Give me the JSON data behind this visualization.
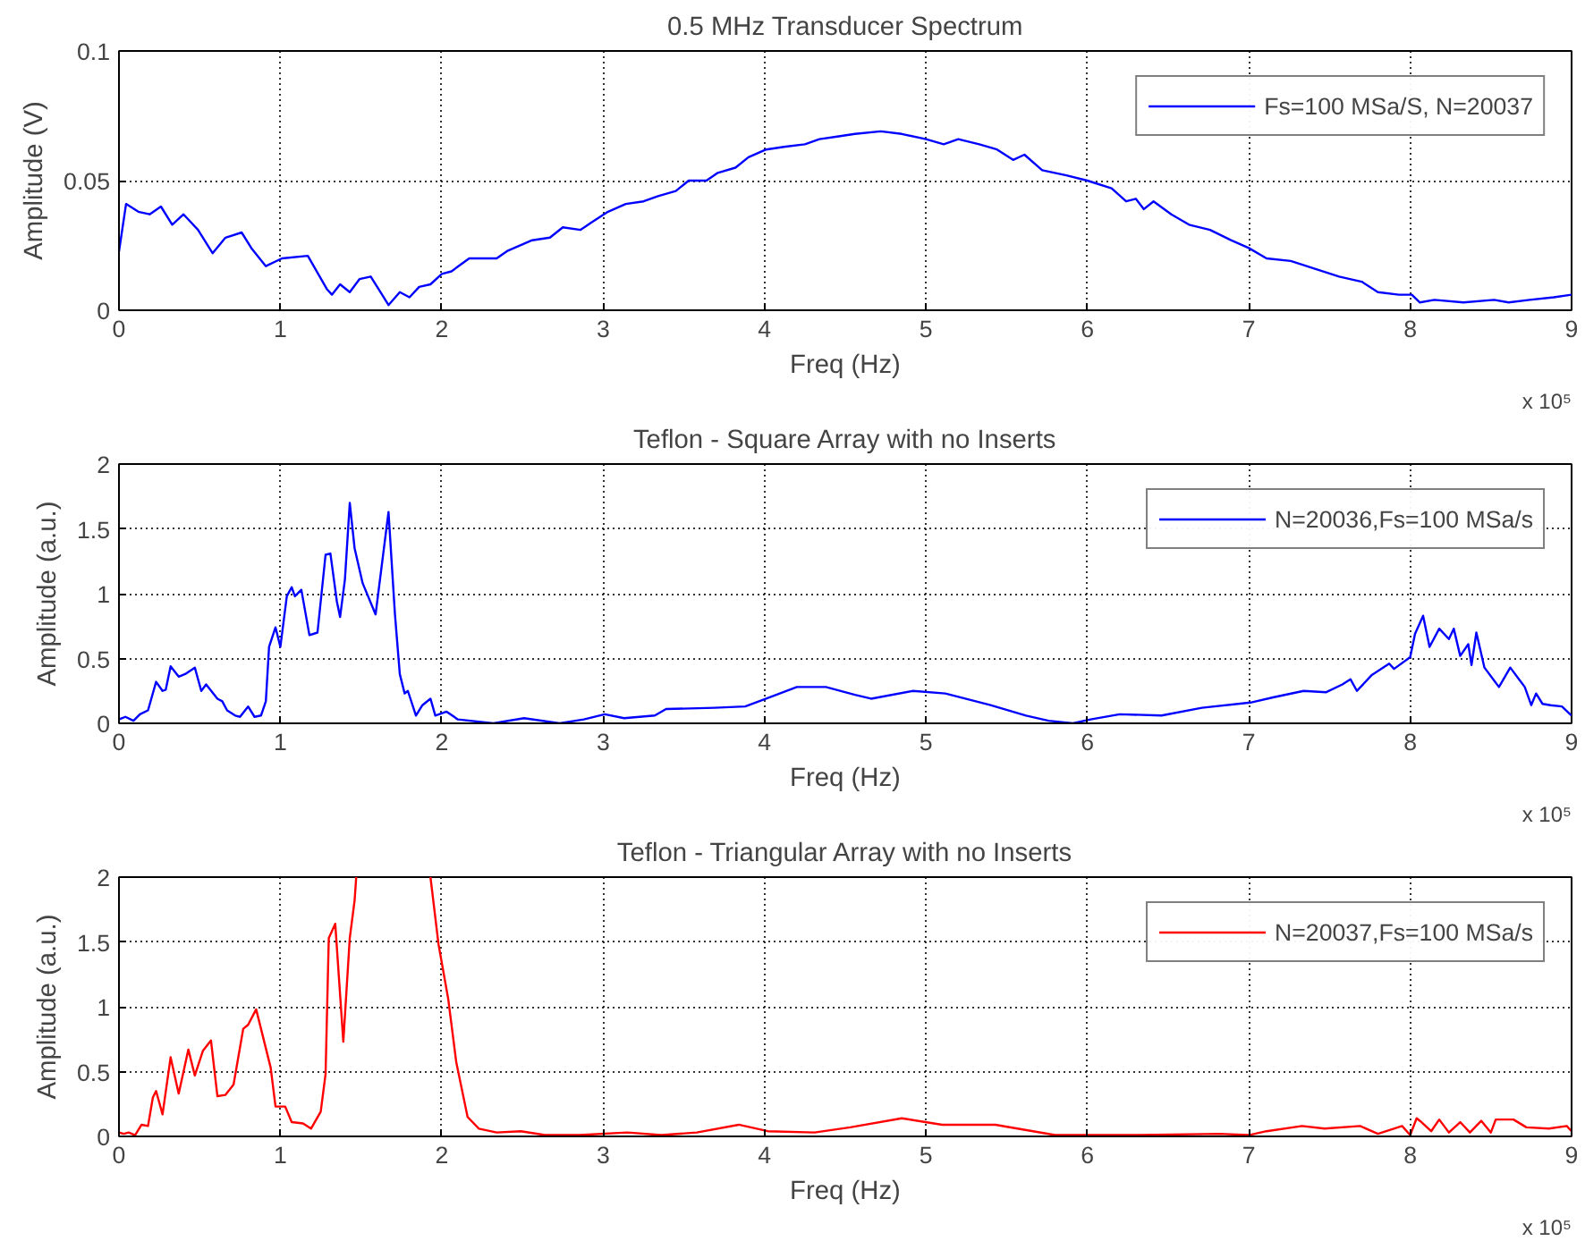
{
  "chart_data": [
    {
      "type": "line",
      "title": "0.5 MHz Transducer Spectrum",
      "xlabel": "Freq (Hz)",
      "ylabel": "Amplitude (V)",
      "xlim": [
        0,
        9
      ],
      "xticks": [
        0,
        1,
        2,
        3,
        4,
        5,
        6,
        7,
        8,
        9
      ],
      "ylim": [
        0,
        0.1
      ],
      "yticks": [
        0,
        0.05,
        0.1
      ],
      "grid": true,
      "legend": "top right",
      "annotations": [
        "x 10⁵"
      ],
      "series": [
        {
          "name": "Fs=100 MSa/S, N=20037",
          "color": "#0000ff",
          "x": [
            0,
            0.044,
            0.12,
            0.19,
            0.26,
            0.33,
            0.4,
            0.49,
            0.58,
            0.66,
            0.76,
            0.82,
            0.91,
            1.01,
            1.17,
            1.29,
            1.32,
            1.37,
            1.43,
            1.49,
            1.56,
            1.62,
            1.67,
            1.74,
            1.8,
            1.86,
            1.93,
            2.0,
            2.06,
            2.17,
            2.34,
            2.41,
            2.56,
            2.67,
            2.75,
            2.86,
            2.93,
            3.03,
            3.14,
            3.25,
            3.34,
            3.45,
            3.53,
            3.64,
            3.71,
            3.82,
            3.9,
            4.01,
            4.12,
            4.25,
            4.34,
            4.45,
            4.56,
            4.72,
            4.85,
            5.0,
            5.11,
            5.2,
            5.33,
            5.44,
            5.54,
            5.61,
            5.72,
            5.87,
            6.0,
            6.15,
            6.24,
            6.3,
            6.35,
            6.41,
            6.52,
            6.63,
            6.76,
            6.89,
            7.0,
            7.11,
            7.26,
            7.41,
            7.56,
            7.7,
            7.8,
            7.93,
            8.01,
            8.06,
            8.15,
            8.33,
            8.52,
            8.61,
            8.74,
            8.89,
            9.0
          ],
          "values": [
            0.0226,
            0.041,
            0.038,
            0.037,
            0.04,
            0.033,
            0.037,
            0.031,
            0.022,
            0.028,
            0.03,
            0.024,
            0.017,
            0.02,
            0.021,
            0.008,
            0.006,
            0.01,
            0.007,
            0.012,
            0.013,
            0.007,
            0.002,
            0.007,
            0.005,
            0.009,
            0.01,
            0.014,
            0.015,
            0.02,
            0.02,
            0.023,
            0.027,
            0.028,
            0.032,
            0.031,
            0.034,
            0.038,
            0.041,
            0.042,
            0.044,
            0.046,
            0.05,
            0.05,
            0.053,
            0.055,
            0.059,
            0.062,
            0.063,
            0.064,
            0.066,
            0.067,
            0.068,
            0.069,
            0.068,
            0.066,
            0.064,
            0.066,
            0.064,
            0.062,
            0.058,
            0.06,
            0.054,
            0.052,
            0.05,
            0.047,
            0.042,
            0.043,
            0.039,
            0.042,
            0.037,
            0.033,
            0.031,
            0.027,
            0.024,
            0.02,
            0.019,
            0.016,
            0.013,
            0.011,
            0.007,
            0.006,
            0.006,
            0.003,
            0.004,
            0.003,
            0.004,
            0.003,
            0.004,
            0.005,
            0.006
          ]
        }
      ]
    },
    {
      "type": "line",
      "title": "Teflon - Square Array with no Inserts",
      "xlabel": "Freq (Hz)",
      "ylabel": "Amplitude (a.u.)",
      "xlim": [
        0,
        9
      ],
      "xticks": [
        0,
        1,
        2,
        3,
        4,
        5,
        6,
        7,
        8,
        9
      ],
      "ylim": [
        0,
        2
      ],
      "yticks": [
        0,
        0.5,
        1,
        1.5,
        2
      ],
      "grid": true,
      "legend": "top right",
      "annotations": [
        "x 10⁵"
      ],
      "series": [
        {
          "name": "N=20036,Fs=100 MSa/s",
          "color": "#0000ff",
          "x": [
            0,
            0.04,
            0.09,
            0.13,
            0.18,
            0.23,
            0.27,
            0.29,
            0.32,
            0.37,
            0.41,
            0.47,
            0.51,
            0.54,
            0.61,
            0.64,
            0.67,
            0.72,
            0.75,
            0.8,
            0.84,
            0.88,
            0.91,
            0.93,
            0.97,
            1.0,
            1.04,
            1.07,
            1.09,
            1.13,
            1.18,
            1.23,
            1.28,
            1.31,
            1.35,
            1.37,
            1.4,
            1.43,
            1.46,
            1.51,
            1.59,
            1.67,
            1.71,
            1.74,
            1.77,
            1.79,
            1.84,
            1.88,
            1.93,
            1.96,
            2.03,
            2.1,
            2.32,
            2.51,
            2.73,
            2.88,
            3.01,
            3.13,
            3.32,
            3.39,
            3.69,
            3.88,
            4.01,
            4.2,
            4.38,
            4.56,
            4.66,
            4.92,
            5.12,
            5.4,
            5.62,
            5.76,
            5.91,
            6.02,
            6.2,
            6.46,
            6.71,
            7.01,
            7.15,
            7.34,
            7.48,
            7.58,
            7.63,
            7.67,
            7.76,
            7.87,
            7.9,
            8.0,
            8.03,
            8.08,
            8.12,
            8.18,
            8.24,
            8.27,
            8.31,
            8.36,
            8.38,
            8.41,
            8.46,
            8.55,
            8.62,
            8.71,
            8.75,
            8.78,
            8.82,
            8.87,
            8.94,
            9.0
          ],
          "values": [
            0.03,
            0.05,
            0.02,
            0.07,
            0.1,
            0.32,
            0.25,
            0.26,
            0.44,
            0.36,
            0.38,
            0.43,
            0.25,
            0.3,
            0.19,
            0.17,
            0.1,
            0.06,
            0.05,
            0.13,
            0.05,
            0.06,
            0.17,
            0.59,
            0.74,
            0.59,
            0.98,
            1.05,
            0.98,
            1.03,
            0.68,
            0.7,
            1.3,
            1.31,
            0.94,
            0.82,
            1.11,
            1.7,
            1.35,
            1.08,
            0.84,
            1.63,
            0.84,
            0.38,
            0.23,
            0.25,
            0.06,
            0.14,
            0.19,
            0.06,
            0.09,
            0.03,
            0.0,
            0.04,
            0.0,
            0.03,
            0.07,
            0.04,
            0.06,
            0.11,
            0.12,
            0.13,
            0.19,
            0.28,
            0.28,
            0.22,
            0.19,
            0.25,
            0.23,
            0.14,
            0.06,
            0.02,
            0.0,
            0.03,
            0.07,
            0.06,
            0.12,
            0.16,
            0.2,
            0.25,
            0.24,
            0.3,
            0.34,
            0.25,
            0.37,
            0.46,
            0.42,
            0.51,
            0.69,
            0.83,
            0.59,
            0.73,
            0.65,
            0.73,
            0.52,
            0.61,
            0.45,
            0.7,
            0.43,
            0.28,
            0.43,
            0.28,
            0.14,
            0.23,
            0.15,
            0.14,
            0.13,
            0.06
          ]
        }
      ]
    },
    {
      "type": "line",
      "title": "Teflon - Triangular Array with no Inserts",
      "xlabel": "Freq (Hz)",
      "ylabel": "Amplitude (a.u.)",
      "xlim": [
        0,
        9
      ],
      "xticks": [
        0,
        1,
        2,
        3,
        4,
        5,
        6,
        7,
        8,
        9
      ],
      "ylim": [
        0,
        2
      ],
      "yticks": [
        0,
        0.5,
        1,
        1.5,
        2
      ],
      "grid": true,
      "legend": "top right",
      "annotations": [
        "x 10⁵"
      ],
      "series": [
        {
          "name": "N=20037,Fs=100 MSa/s",
          "color": "#ff0000",
          "x": [
            0,
            0.03,
            0.06,
            0.1,
            0.14,
            0.18,
            0.21,
            0.23,
            0.27,
            0.32,
            0.37,
            0.43,
            0.47,
            0.52,
            0.57,
            0.61,
            0.66,
            0.71,
            0.77,
            0.8,
            0.85,
            0.89,
            0.94,
            0.97,
            1.03,
            1.07,
            1.14,
            1.19,
            1.25,
            1.28,
            1.3,
            1.34,
            1.39,
            1.43,
            1.46,
            1.47,
            1.7,
            1.93,
            1.98,
            2.04,
            2.09,
            2.16,
            2.23,
            2.34,
            2.49,
            2.64,
            2.85,
            3.15,
            3.36,
            3.58,
            3.84,
            4.02,
            4.31,
            4.53,
            4.85,
            5.1,
            5.43,
            5.8,
            6.31,
            6.82,
            7.0,
            7.11,
            7.33,
            7.47,
            7.69,
            7.8,
            7.95,
            8.0,
            8.04,
            8.07,
            8.13,
            8.18,
            8.24,
            8.31,
            8.37,
            8.44,
            8.5,
            8.53,
            8.64,
            8.72,
            8.86,
            8.97,
            9.0
          ],
          "values": [
            0.03,
            0.02,
            0.03,
            0.01,
            0.09,
            0.08,
            0.3,
            0.35,
            0.17,
            0.61,
            0.33,
            0.67,
            0.47,
            0.66,
            0.74,
            0.31,
            0.32,
            0.4,
            0.83,
            0.86,
            0.98,
            0.78,
            0.53,
            0.23,
            0.23,
            0.11,
            0.1,
            0.06,
            0.19,
            0.48,
            1.53,
            1.64,
            0.73,
            1.53,
            1.82,
            2.0,
            null,
            2.0,
            1.48,
            1.06,
            0.57,
            0.15,
            0.06,
            0.03,
            0.04,
            0.01,
            0.01,
            0.03,
            0.01,
            0.03,
            0.09,
            0.04,
            0.03,
            0.07,
            0.14,
            0.09,
            0.09,
            0.01,
            0.01,
            0.02,
            0.01,
            0.04,
            0.08,
            0.06,
            0.08,
            0.02,
            0.08,
            0.01,
            0.14,
            0.11,
            0.04,
            0.13,
            0.03,
            0.11,
            0.03,
            0.12,
            0.03,
            0.13,
            0.13,
            0.07,
            0.06,
            0.08,
            0.04
          ]
        }
      ]
    }
  ]
}
